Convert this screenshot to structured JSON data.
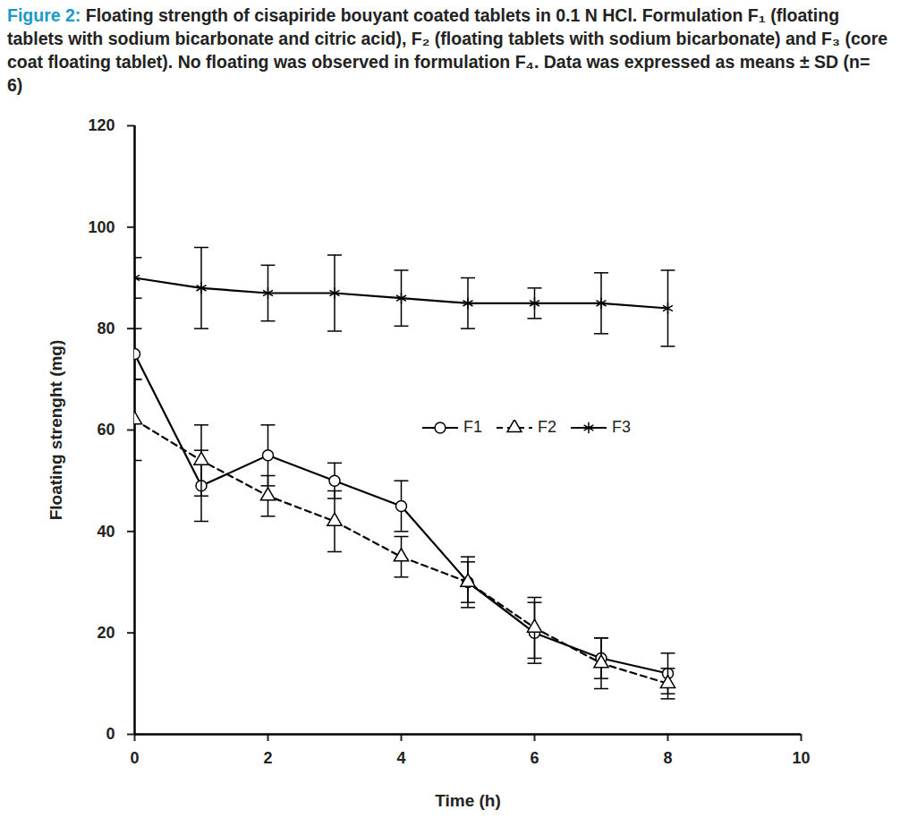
{
  "chart_data": {
    "type": "line",
    "title": "Figure 2:",
    "subtitle": "Floating strength of cisapiride bouyant coated tablets in 0.1 N HCl. Formulation F₁ (floating tablets with sodium bicarbonate and citric acid), F₂ (floating tablets with sodium bicarbonate) and F₃ (core coat floating tablet). No floating was observed in formulation F₄. Data was expressed as means ± SD (n= 6)",
    "x_label": "Time (h)",
    "y_label": "Floating strenght (mg)",
    "x": [
      0,
      1,
      2,
      3,
      4,
      5,
      6,
      7,
      8
    ],
    "series": [
      {
        "name": "F1",
        "color": "#000000",
        "marker": "circle",
        "line_style": "solid",
        "values": [
          75,
          49,
          55,
          50,
          45,
          30,
          20,
          15,
          12
        ],
        "errors": [
          5,
          7,
          6,
          3.5,
          5,
          5,
          6,
          4,
          4
        ]
      },
      {
        "name": "F2",
        "color": "#000000",
        "marker": "triangle",
        "line_style": "dashed",
        "values": [
          62,
          54,
          47,
          42,
          35,
          30,
          21,
          14,
          10
        ],
        "errors": [
          8,
          7,
          4,
          6,
          4,
          4,
          6,
          5,
          3
        ]
      },
      {
        "name": "F3",
        "color": "#000000",
        "marker": "asterisk",
        "line_style": "solid",
        "values": [
          90,
          88,
          87,
          87,
          86,
          85,
          85,
          85,
          84
        ],
        "errors": [
          4,
          8,
          5.5,
          7.5,
          5.5,
          5,
          3,
          6,
          7.5
        ]
      }
    ],
    "xlim": [
      0,
      10
    ],
    "xticks": [
      0,
      2,
      4,
      6,
      8,
      10
    ],
    "ylim": [
      0,
      120
    ],
    "yticks": [
      0,
      20,
      40,
      60,
      80,
      100,
      120
    ],
    "grid": false,
    "legend": "right"
  }
}
